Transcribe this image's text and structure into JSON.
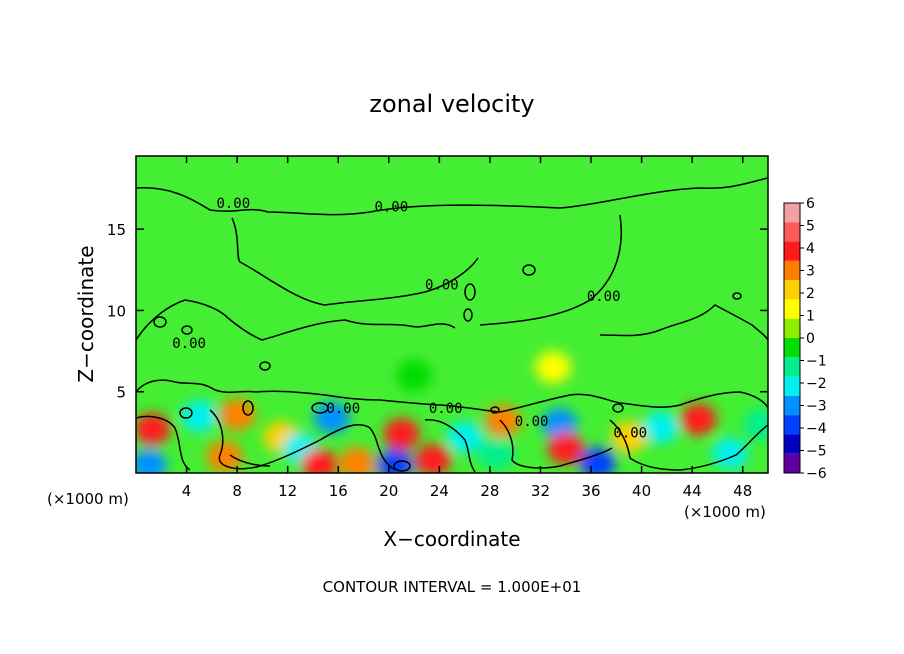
{
  "chart_data": {
    "type": "heatmap",
    "title": "zonal velocity",
    "xlabel": "X−coordinate",
    "ylabel": "Z−coordinate",
    "x_unit_left": "(×1000 m)",
    "x_unit_right": "(×1000 m)",
    "footer": "CONTOUR INTERVAL = 1.000E+01",
    "xlim": [
      0,
      50
    ],
    "ylim": [
      0,
      19.5
    ],
    "x_ticks": [
      4,
      8,
      12,
      16,
      20,
      24,
      28,
      32,
      36,
      40,
      44,
      48
    ],
    "y_ticks": [
      5,
      10,
      15
    ],
    "colorbar_ticks": [
      6,
      5,
      4,
      3,
      2,
      1,
      0,
      -1,
      -2,
      -3,
      -4,
      -5,
      -6
    ],
    "colorbar_colors": [
      "#f0a0a0",
      "#ff5a5a",
      "#ff1a1a",
      "#ff8000",
      "#ffd000",
      "#ffff00",
      "#90ee00",
      "#00dd00",
      "#00ee90",
      "#00f0f0",
      "#0090ff",
      "#0040ff",
      "#0000c0",
      "#6000a0"
    ],
    "background_color": "#44ee33",
    "contour_labels": [
      {
        "text": "0.00",
        "x": 7.7,
        "y": 16.6
      },
      {
        "text": "0.00",
        "x": 20.2,
        "y": 16.4
      },
      {
        "text": "0.00",
        "x": 24.2,
        "y": 11.6
      },
      {
        "text": "0.00",
        "x": 37.0,
        "y": 10.9
      },
      {
        "text": "0.00",
        "x": 4.2,
        "y": 8.0
      },
      {
        "text": "0.00",
        "x": 16.4,
        "y": 4.0
      },
      {
        "text": "0.00",
        "x": 24.5,
        "y": 4.0
      },
      {
        "text": "0.00",
        "x": 31.3,
        "y": 3.2
      },
      {
        "text": "0.00",
        "x": 39.1,
        "y": 2.5
      }
    ],
    "anomalies": [
      {
        "x": 1.3,
        "y": 2.7,
        "v": 4
      },
      {
        "x": 1.0,
        "y": 0.5,
        "v": -4
      },
      {
        "x": 5.0,
        "y": 3.5,
        "v": -3
      },
      {
        "x": 8.0,
        "y": 3.6,
        "v": 3
      },
      {
        "x": 7.0,
        "y": 1.0,
        "v": 3
      },
      {
        "x": 11.5,
        "y": 2.2,
        "v": 2
      },
      {
        "x": 15.5,
        "y": 3.4,
        "v": -4
      },
      {
        "x": 13.0,
        "y": 1.5,
        "v": -3
      },
      {
        "x": 14.5,
        "y": 0.5,
        "v": 4
      },
      {
        "x": 17.5,
        "y": 0.6,
        "v": 3
      },
      {
        "x": 21.0,
        "y": 2.4,
        "v": 4
      },
      {
        "x": 20.5,
        "y": 0.5,
        "v": -5
      },
      {
        "x": 23.5,
        "y": 0.8,
        "v": 4
      },
      {
        "x": 26.0,
        "y": 2.2,
        "v": -3
      },
      {
        "x": 29.0,
        "y": 3.2,
        "v": 3
      },
      {
        "x": 28.5,
        "y": 1.2,
        "v": -2
      },
      {
        "x": 33.5,
        "y": 3.0,
        "v": -4
      },
      {
        "x": 34.0,
        "y": 1.5,
        "v": 4
      },
      {
        "x": 36.5,
        "y": 0.6,
        "v": -5
      },
      {
        "x": 39.0,
        "y": 2.2,
        "v": 2
      },
      {
        "x": 41.5,
        "y": 2.8,
        "v": -3
      },
      {
        "x": 44.5,
        "y": 3.3,
        "v": 4
      },
      {
        "x": 47.0,
        "y": 1.2,
        "v": -3
      },
      {
        "x": 49.5,
        "y": 3.0,
        "v": -2
      },
      {
        "x": 22.0,
        "y": 6.0,
        "v": -1
      },
      {
        "x": 33.0,
        "y": 6.5,
        "v": 1
      }
    ]
  }
}
